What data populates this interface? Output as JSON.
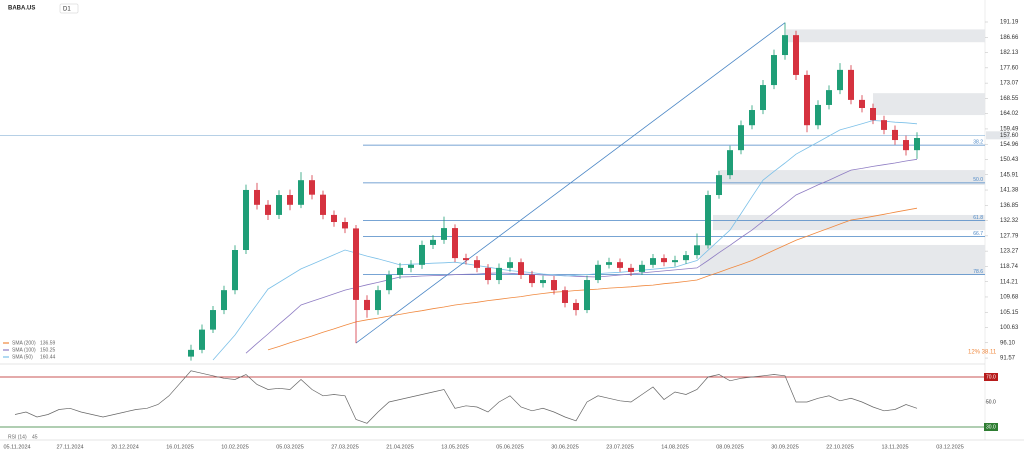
{
  "header": {
    "symbol": "BABA.US",
    "timeframe": "D1"
  },
  "chart_data": [
    {
      "type": "candlestick",
      "categories": [
        "05.11.2024",
        null,
        null,
        null,
        null,
        "27.11.2024",
        null,
        null,
        null,
        null,
        "20.12.2024",
        null,
        null,
        null,
        null,
        "16.01.2025",
        null,
        null,
        null,
        null,
        "10.02.2025",
        null,
        null,
        null,
        null,
        "05.03.2025",
        null,
        null,
        null,
        null,
        "27.03.2025",
        null,
        null,
        null,
        null,
        "21.04.2025",
        null,
        null,
        null,
        null,
        "13.05.2025",
        null,
        null,
        null,
        null,
        "05.06.2025",
        null,
        null,
        null,
        null,
        "30.06.2025",
        null,
        null,
        null,
        null,
        "23.07.2025",
        null,
        null,
        null,
        null,
        "14.08.2025",
        null,
        null,
        null,
        null,
        "08.09.2025",
        null,
        null,
        null,
        null,
        "30.09.2025",
        null,
        null,
        null,
        null,
        "22.10.2025",
        null,
        null,
        null,
        null,
        "13.11.2025",
        null,
        null,
        null,
        null,
        "03.12.2025"
      ],
      "open": [
        null,
        null,
        null,
        null,
        null,
        null,
        null,
        null,
        null,
        null,
        null,
        null,
        null,
        null,
        null,
        null,
        92,
        94,
        100,
        105.8,
        111.7,
        123.6,
        141.4,
        137,
        134,
        139.9,
        137,
        144.3,
        140,
        134,
        131.9,
        130,
        108.8,
        105.8,
        111.7,
        116.2,
        118.3,
        119.2,
        125.1,
        126.6,
        130.1,
        121.2,
        120.6,
        118.3,
        114.7,
        118.3,
        120,
        116.2,
        113.8,
        114.7,
        111.7,
        107.9,
        105.8,
        114.7,
        119.2,
        120,
        118.3,
        117.1,
        119.2,
        121.2,
        120,
        120.6,
        122.1,
        125,
        139.9,
        145.8,
        153.2,
        160.6,
        165.1,
        172.5,
        181.4,
        187.3,
        175.5,
        160.6,
        166.6,
        171,
        177,
        168.1,
        165.7,
        162.1,
        159.2,
        156.2,
        153.2,
        null,
        null,
        null
      ],
      "high": [
        null,
        null,
        null,
        null,
        null,
        null,
        null,
        null,
        null,
        null,
        null,
        null,
        null,
        null,
        null,
        null,
        95.5,
        101.5,
        107,
        113,
        125,
        143,
        143.5,
        138.4,
        141.3,
        141.5,
        146.7,
        145.8,
        141.2,
        135.3,
        133.2,
        131,
        110.2,
        113,
        117.5,
        119.8,
        120.6,
        126.4,
        128,
        133.5,
        131.2,
        122.5,
        121.8,
        119.4,
        119.6,
        121.4,
        121.1,
        117.4,
        116,
        115.9,
        112.8,
        109,
        116,
        120.5,
        121.3,
        121.1,
        119.5,
        120.4,
        122.4,
        122.3,
        121.9,
        123.3,
        128.5,
        141.2,
        147.1,
        154.5,
        162,
        166.5,
        174,
        183,
        191,
        188.6,
        176.8,
        168,
        172.4,
        179,
        178.4,
        169.5,
        167,
        163.4,
        160.5,
        157.5,
        158.5,
        null,
        null,
        null
      ],
      "low": [
        null,
        null,
        null,
        null,
        null,
        null,
        null,
        null,
        null,
        null,
        null,
        null,
        null,
        null,
        null,
        null,
        90.8,
        93,
        99,
        104.6,
        110.5,
        122.4,
        135.6,
        132.5,
        132.8,
        135.4,
        136,
        138.6,
        132.7,
        130.5,
        128.6,
        96,
        103.5,
        104.4,
        110.5,
        115,
        117,
        118,
        123.9,
        125.4,
        120,
        119.3,
        117,
        113.4,
        113.5,
        117.2,
        115,
        112.6,
        112.5,
        110.4,
        106.6,
        104.2,
        104.9,
        113.8,
        118.1,
        117.1,
        115.9,
        116.2,
        118.3,
        118.8,
        118.7,
        119.5,
        121,
        124,
        138.8,
        144.6,
        152,
        159.4,
        163.9,
        171.3,
        180,
        174,
        158.5,
        159.4,
        165.3,
        169.8,
        166.8,
        164.4,
        160.9,
        157.9,
        154.8,
        151.6,
        150.6,
        null,
        null,
        null
      ],
      "close": [
        null,
        null,
        null,
        null,
        null,
        null,
        null,
        null,
        null,
        null,
        null,
        null,
        null,
        null,
        null,
        null,
        94,
        100,
        105.8,
        111.7,
        123.6,
        141.4,
        137,
        134,
        139.9,
        137,
        144.3,
        140,
        134,
        131.9,
        130,
        108.8,
        105.8,
        111.7,
        116.2,
        118.3,
        119.2,
        125.1,
        126.6,
        130.1,
        121.2,
        120.6,
        118.3,
        114.7,
        118.3,
        120,
        116.2,
        113.8,
        114.7,
        111.7,
        107.9,
        105.8,
        114.7,
        119.2,
        120,
        118.3,
        117.1,
        119.2,
        121.2,
        120,
        120.6,
        122.1,
        125,
        139.9,
        145.8,
        153.2,
        160.6,
        165.1,
        172.5,
        181.4,
        187.3,
        175.5,
        160.6,
        166.6,
        171,
        177,
        168.1,
        165.7,
        162.1,
        159.2,
        156.2,
        153.2,
        156.8,
        null,
        null,
        null
      ],
      "up_color": "#1f9e77",
      "down_color": "#d5323f",
      "series": [
        {
          "name": "SMA (200)",
          "color": "#f0883e",
          "legend_value": 136.59,
          "values": [
            null,
            null,
            null,
            null,
            null,
            null,
            null,
            null,
            null,
            null,
            null,
            null,
            null,
            null,
            null,
            null,
            null,
            null,
            null,
            null,
            null,
            null,
            null,
            94,
            95,
            96.1,
            97.1,
            98.1,
            99.2,
            100.2,
            101.3,
            102.3,
            102.9,
            103.4,
            104,
            104.5,
            105.1,
            105.6,
            106.2,
            106.7,
            107.3,
            107.7,
            108.1,
            108.6,
            109,
            109.4,
            109.8,
            110.3,
            110.7,
            111.1,
            111.3,
            111.6,
            111.8,
            112,
            112.3,
            112.5,
            112.7,
            113,
            113.2,
            113.6,
            113.9,
            114.3,
            114.7,
            115.9,
            117,
            118.2,
            119.3,
            120.5,
            122,
            123.5,
            125,
            126.5,
            127.7,
            128.9,
            130.1,
            131.3,
            132.5,
            133,
            133.6,
            134.2,
            134.8,
            135.4,
            136,
            null,
            null,
            null
          ]
        },
        {
          "name": "SMA (100)",
          "color": "#8e7cc3",
          "legend_value": 150.25,
          "values": [
            null,
            null,
            null,
            null,
            null,
            null,
            null,
            null,
            null,
            null,
            null,
            null,
            null,
            null,
            null,
            null,
            null,
            null,
            null,
            null,
            null,
            93,
            95.9,
            98.7,
            101.6,
            104.4,
            107.3,
            108.4,
            109.5,
            110.6,
            111.7,
            112.5,
            113.3,
            114,
            114.8,
            115.6,
            115.7,
            115.9,
            116,
            116.1,
            116.3,
            116.4,
            116.5,
            116.7,
            116.8,
            116.7,
            116.5,
            116.4,
            116.2,
            116.1,
            116,
            115.8,
            115.7,
            115.6,
            115.9,
            116.2,
            116.5,
            116.8,
            117.1,
            117.4,
            117.7,
            118,
            118.3,
            120.5,
            122.8,
            125,
            127.3,
            129.5,
            132.1,
            134.7,
            137.3,
            139.9,
            141.4,
            142.9,
            144.3,
            145.8,
            147.3,
            147.8,
            148.4,
            148.9,
            149.4,
            150,
            150.5,
            null,
            null,
            null
          ]
        },
        {
          "name": "SMA (50)",
          "color": "#7cc0e8",
          "legend_value": 160.44,
          "values": [
            null,
            null,
            null,
            null,
            null,
            null,
            null,
            null,
            null,
            null,
            null,
            null,
            null,
            null,
            null,
            null,
            null,
            null,
            91,
            94.7,
            98.4,
            103,
            107.5,
            112,
            114,
            116,
            118,
            119.4,
            120.8,
            122.2,
            123.6,
            122.7,
            121.8,
            121,
            120.1,
            119.2,
            119.4,
            119.5,
            119.7,
            119.8,
            120,
            119.5,
            119,
            118.5,
            118,
            117.5,
            117.2,
            116.9,
            116.5,
            116.2,
            115.9,
            116.1,
            116.3,
            116.6,
            116.8,
            117,
            117.3,
            117.6,
            117.9,
            118.2,
            118.5,
            119.5,
            120.5,
            123.5,
            126.5,
            129.5,
            134.4,
            139.4,
            144.3,
            146.9,
            149.4,
            152,
            153.8,
            155.6,
            157.4,
            159.2,
            160.1,
            161,
            162,
            161.8,
            161.5,
            161.3,
            161,
            null,
            null,
            null
          ]
        }
      ],
      "ylim": [
        90.4,
        194.75
      ],
      "yticks": [
        191.19,
        186.66,
        182.13,
        {
          "value": 177.6,
          "label": "177.60"
        },
        173.07,
        168.55,
        164.02,
        159.49,
        154.96,
        150.43,
        145.91,
        141.38,
        136.85,
        132.32,
        127.79,
        123.27,
        118.74,
        114.21,
        109.68,
        105.15,
        100.63,
        {
          "value": 96.1,
          "label": "96.10"
        },
        91.57
      ],
      "grid": false,
      "last_price": {
        "value": 157.6,
        "label": "157.60"
      },
      "fib_levels": [
        {
          "ratio": "38.2",
          "price": 154.7
        },
        {
          "ratio": "50.0",
          "price": 143.5
        },
        {
          "ratio": "61.8",
          "price": 132.3
        },
        {
          "ratio": "66.7",
          "price": 127.6
        },
        {
          "ratio": "78.6",
          "price": 116.3
        }
      ],
      "zones": [
        {
          "low": 185.2,
          "high": 189
        },
        {
          "low": 163.6,
          "high": 170.1
        },
        {
          "low": 142.9,
          "high": 147.3
        },
        {
          "low": 129.5,
          "high": 134
        },
        {
          "low": 116.2,
          "high": 125.1
        }
      ],
      "annotation": "12% 38.11"
    },
    {
      "type": "line",
      "name": "RSI (14)",
      "legend_value": 45,
      "color": "#666666",
      "values": [
        40,
        42,
        38,
        40,
        44,
        45,
        42,
        40,
        38,
        40,
        42,
        44,
        45,
        48,
        55,
        65,
        75,
        73,
        71,
        69,
        68,
        72,
        64,
        60,
        61,
        60,
        68,
        60,
        55,
        56,
        55,
        36,
        33,
        42,
        50,
        52,
        54,
        56,
        58,
        60,
        45,
        47,
        46,
        42,
        50,
        55,
        46,
        43,
        45,
        42,
        38,
        35,
        50,
        55,
        53,
        51,
        50,
        56,
        62,
        52,
        58,
        56,
        60,
        70,
        72,
        67,
        69,
        70,
        71,
        72,
        71,
        50,
        50,
        53,
        55,
        51,
        53,
        50,
        46,
        43,
        44,
        48,
        45,
        null,
        null,
        null
      ],
      "ylim": [
        22.8,
        78.8
      ],
      "yticks": [
        {
          "value": 70,
          "label": "70.0"
        },
        {
          "value": 50,
          "label": "50.0"
        },
        {
          "value": 30,
          "label": "30.0"
        }
      ]
    }
  ]
}
